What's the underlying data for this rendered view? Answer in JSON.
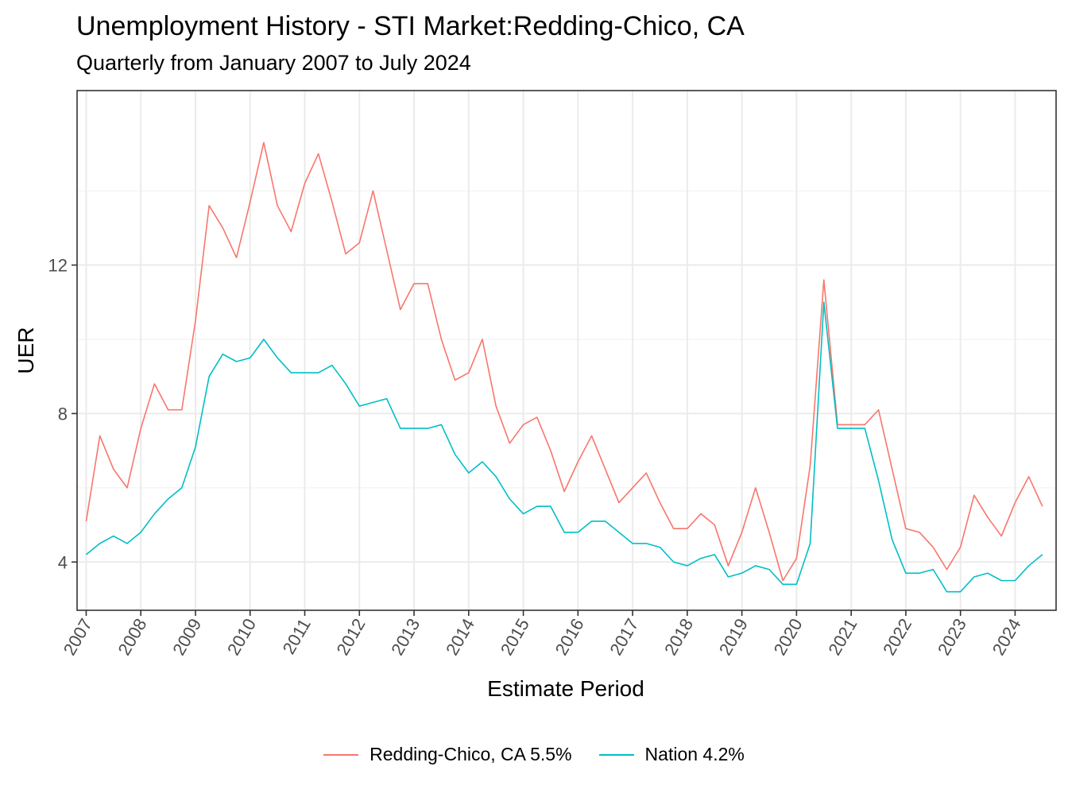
{
  "chart_data": {
    "type": "line",
    "title": "Unemployment History - STI Market:Redding-Chico, CA",
    "subtitle": "Quarterly from January 2007 to July 2024",
    "xlabel": "Estimate Period",
    "ylabel": "UER",
    "x_start": "2007-01",
    "x_end": "2024-07",
    "xlim": [
      "2006-11",
      "2024-10"
    ],
    "x_ticks": [
      "2007",
      "2008",
      "2009",
      "2010",
      "2011",
      "2012",
      "2013",
      "2014",
      "2015",
      "2016",
      "2017",
      "2018",
      "2019",
      "2020",
      "2021",
      "2022",
      "2023",
      "2024"
    ],
    "ylim": [
      2.7,
      16.7
    ],
    "y_ticks": [
      4,
      8,
      12
    ],
    "grid": true,
    "legend_position": "bottom",
    "series": [
      {
        "name": "Redding-Chico, CA 5.5%",
        "color": "#F8766D",
        "values": [
          5.1,
          7.4,
          6.5,
          6.0,
          7.6,
          8.8,
          8.1,
          8.1,
          10.5,
          13.6,
          13.0,
          12.2,
          13.7,
          15.3,
          13.6,
          12.9,
          14.2,
          15.0,
          13.7,
          12.3,
          12.6,
          14.0,
          12.4,
          10.8,
          11.5,
          11.5,
          10.0,
          8.9,
          9.1,
          10.0,
          8.2,
          7.2,
          7.7,
          7.9,
          7.0,
          5.9,
          6.7,
          7.4,
          6.5,
          5.6,
          6.0,
          6.4,
          5.6,
          4.9,
          4.9,
          5.3,
          5.0,
          3.9,
          4.8,
          6.0,
          4.8,
          3.5,
          4.1,
          6.6,
          11.6,
          7.7,
          7.7,
          7.7,
          8.1,
          6.5,
          4.9,
          4.8,
          4.4,
          3.8,
          4.4,
          5.8,
          5.2,
          4.7,
          5.6,
          6.3,
          5.5
        ]
      },
      {
        "name": "Nation 4.2%",
        "color": "#00BFC4",
        "values": [
          4.2,
          4.5,
          4.7,
          4.5,
          4.8,
          5.3,
          5.7,
          6.0,
          7.1,
          9.0,
          9.6,
          9.4,
          9.5,
          10.0,
          9.5,
          9.1,
          9.1,
          9.1,
          9.3,
          8.8,
          8.2,
          8.3,
          8.4,
          7.6,
          7.6,
          7.6,
          7.7,
          6.9,
          6.4,
          6.7,
          6.3,
          5.7,
          5.3,
          5.5,
          5.5,
          4.8,
          4.8,
          5.1,
          5.1,
          4.8,
          4.5,
          4.5,
          4.4,
          4.0,
          3.9,
          4.1,
          4.2,
          3.6,
          3.7,
          3.9,
          3.8,
          3.4,
          3.4,
          4.5,
          11.0,
          7.6,
          7.6,
          7.6,
          6.2,
          4.6,
          3.7,
          3.7,
          3.8,
          3.2,
          3.2,
          3.6,
          3.7,
          3.5,
          3.5,
          3.9,
          4.2
        ]
      }
    ]
  }
}
